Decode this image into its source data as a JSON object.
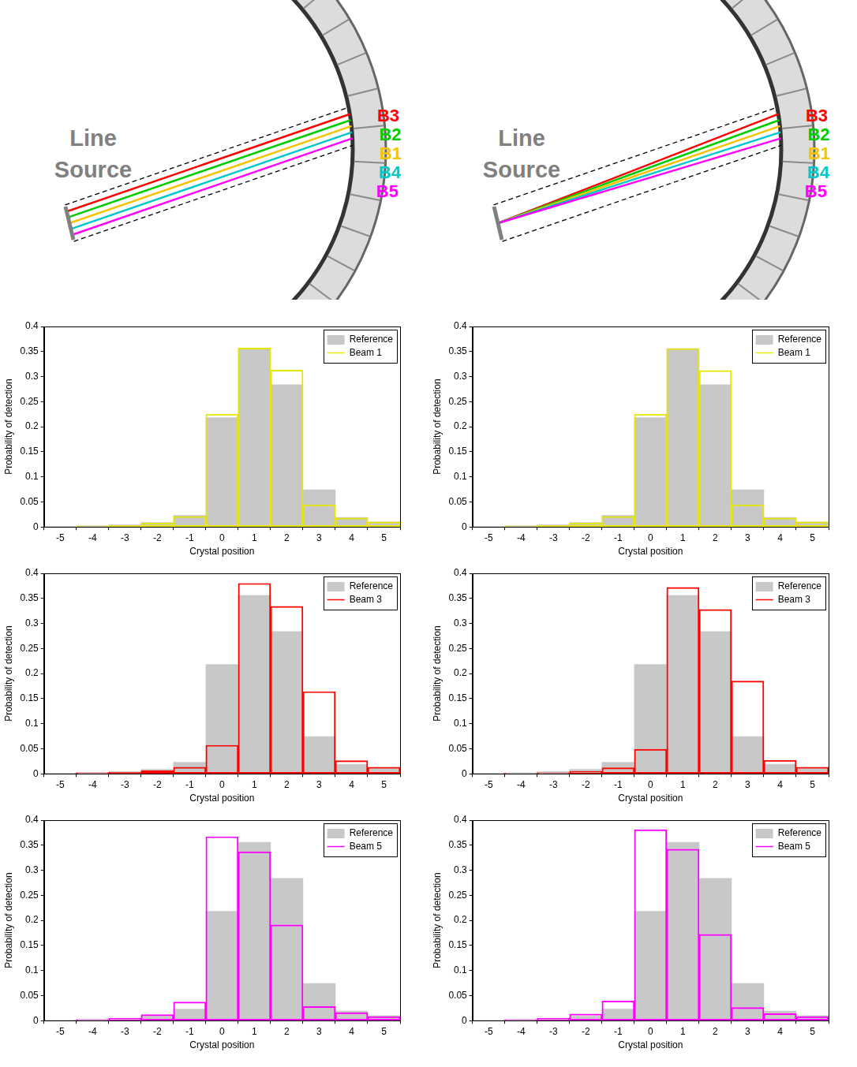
{
  "diagrams": [
    {
      "source_label": "Line Source",
      "beams": [
        {
          "name": "B3",
          "color": "#ff0000"
        },
        {
          "name": "B2",
          "color": "#00cc00"
        },
        {
          "name": "B1",
          "color": "#f5c400"
        },
        {
          "name": "B4",
          "color": "#00c8c8"
        },
        {
          "name": "B5",
          "color": "#ff00ff"
        }
      ]
    },
    {
      "source_label": "Line Source",
      "beams": [
        {
          "name": "B3",
          "color": "#ff0000"
        },
        {
          "name": "B2",
          "color": "#00cc00"
        },
        {
          "name": "B1",
          "color": "#f5c400"
        },
        {
          "name": "B4",
          "color": "#00c8c8"
        },
        {
          "name": "B5",
          "color": "#ff00ff"
        }
      ]
    }
  ],
  "chart_data": [
    {
      "type": "bar",
      "categories": [
        -5,
        -4,
        -3,
        -2,
        -1,
        0,
        1,
        2,
        3,
        4,
        5
      ],
      "series": [
        {
          "name": "Reference",
          "color": "#c8c8c8",
          "values": [
            0.001,
            0.002,
            0.004,
            0.009,
            0.023,
            0.218,
            0.356,
            0.284,
            0.074,
            0.019,
            0.01
          ]
        },
        {
          "name": "Beam 1",
          "color": "#e6e600",
          "values": [
            0.001,
            0.002,
            0.003,
            0.008,
            0.021,
            0.225,
            0.357,
            0.313,
            0.044,
            0.018,
            0.01
          ]
        }
      ],
      "xlabel": "Crystal position",
      "ylabel": "Probability of detection",
      "ylim": [
        0,
        0.4
      ],
      "yticks": [
        0,
        0.05,
        0.1,
        0.15,
        0.2,
        0.25,
        0.3,
        0.35,
        0.4
      ],
      "grid": false,
      "legend": "upper right"
    },
    {
      "type": "bar",
      "categories": [
        -5,
        -4,
        -3,
        -2,
        -1,
        0,
        1,
        2,
        3,
        4,
        5
      ],
      "series": [
        {
          "name": "Reference",
          "color": "#c8c8c8",
          "values": [
            0.001,
            0.002,
            0.004,
            0.009,
            0.023,
            0.218,
            0.356,
            0.284,
            0.074,
            0.019,
            0.01
          ]
        },
        {
          "name": "Beam 1",
          "color": "#e6e600",
          "values": [
            0.001,
            0.002,
            0.003,
            0.008,
            0.021,
            0.225,
            0.356,
            0.312,
            0.044,
            0.018,
            0.01
          ]
        }
      ],
      "xlabel": "Crystal position",
      "ylabel": "Probability of detection",
      "ylim": [
        0,
        0.4
      ],
      "yticks": [
        0,
        0.05,
        0.1,
        0.15,
        0.2,
        0.25,
        0.3,
        0.35,
        0.4
      ],
      "grid": false,
      "legend": "upper right"
    },
    {
      "type": "bar",
      "categories": [
        -5,
        -4,
        -3,
        -2,
        -1,
        0,
        1,
        2,
        3,
        4,
        5
      ],
      "series": [
        {
          "name": "Reference",
          "color": "#c8c8c8",
          "values": [
            0.001,
            0.002,
            0.004,
            0.009,
            0.023,
            0.218,
            0.356,
            0.284,
            0.074,
            0.019,
            0.01
          ]
        },
        {
          "name": "Beam 3",
          "color": "#ff0000",
          "values": [
            0.001,
            0.002,
            0.003,
            0.006,
            0.013,
            0.057,
            0.38,
            0.334,
            0.164,
            0.026,
            0.013
          ]
        }
      ],
      "xlabel": "Crystal position",
      "ylabel": "Probability of detection",
      "ylim": [
        0,
        0.4
      ],
      "yticks": [
        0,
        0.05,
        0.1,
        0.15,
        0.2,
        0.25,
        0.3,
        0.35,
        0.4
      ],
      "grid": false,
      "legend": "upper right"
    },
    {
      "type": "bar",
      "categories": [
        -5,
        -4,
        -3,
        -2,
        -1,
        0,
        1,
        2,
        3,
        4,
        5
      ],
      "series": [
        {
          "name": "Reference",
          "color": "#c8c8c8",
          "values": [
            0.001,
            0.002,
            0.004,
            0.009,
            0.023,
            0.218,
            0.356,
            0.284,
            0.074,
            0.019,
            0.01
          ]
        },
        {
          "name": "Beam 3",
          "color": "#ff0000",
          "values": [
            0.001,
            0.001,
            0.002,
            0.005,
            0.012,
            0.049,
            0.372,
            0.328,
            0.185,
            0.027,
            0.013
          ]
        }
      ],
      "xlabel": "Crystal position",
      "ylabel": "Probability of detection",
      "ylim": [
        0,
        0.4
      ],
      "yticks": [
        0,
        0.05,
        0.1,
        0.15,
        0.2,
        0.25,
        0.3,
        0.35,
        0.4
      ],
      "grid": false,
      "legend": "upper right"
    },
    {
      "type": "bar",
      "categories": [
        -5,
        -4,
        -3,
        -2,
        -1,
        0,
        1,
        2,
        3,
        4,
        5
      ],
      "series": [
        {
          "name": "Reference",
          "color": "#c8c8c8",
          "values": [
            0.001,
            0.002,
            0.004,
            0.009,
            0.023,
            0.218,
            0.356,
            0.284,
            0.074,
            0.019,
            0.01
          ]
        },
        {
          "name": "Beam 5",
          "color": "#ff00ff",
          "values": [
            0.001,
            0.002,
            0.005,
            0.012,
            0.037,
            0.367,
            0.337,
            0.191,
            0.028,
            0.016,
            0.008
          ]
        }
      ],
      "xlabel": "Crystal position",
      "ylabel": "Probability of detection",
      "ylim": [
        0,
        0.4
      ],
      "yticks": [
        0,
        0.05,
        0.1,
        0.15,
        0.2,
        0.25,
        0.3,
        0.35,
        0.4
      ],
      "grid": false,
      "legend": "upper right"
    },
    {
      "type": "bar",
      "categories": [
        -5,
        -4,
        -3,
        -2,
        -1,
        0,
        1,
        2,
        3,
        4,
        5
      ],
      "series": [
        {
          "name": "Reference",
          "color": "#c8c8c8",
          "values": [
            0.001,
            0.002,
            0.004,
            0.009,
            0.023,
            0.218,
            0.356,
            0.284,
            0.074,
            0.019,
            0.01
          ]
        },
        {
          "name": "Beam 5",
          "color": "#ff00ff",
          "values": [
            0.001,
            0.002,
            0.005,
            0.013,
            0.039,
            0.381,
            0.342,
            0.172,
            0.026,
            0.014,
            0.008
          ]
        }
      ],
      "xlabel": "Crystal position",
      "ylabel": "Probability of detection",
      "ylim": [
        0,
        0.4
      ],
      "yticks": [
        0,
        0.05,
        0.1,
        0.15,
        0.2,
        0.25,
        0.3,
        0.35,
        0.4
      ],
      "grid": false,
      "legend": "upper right"
    }
  ]
}
